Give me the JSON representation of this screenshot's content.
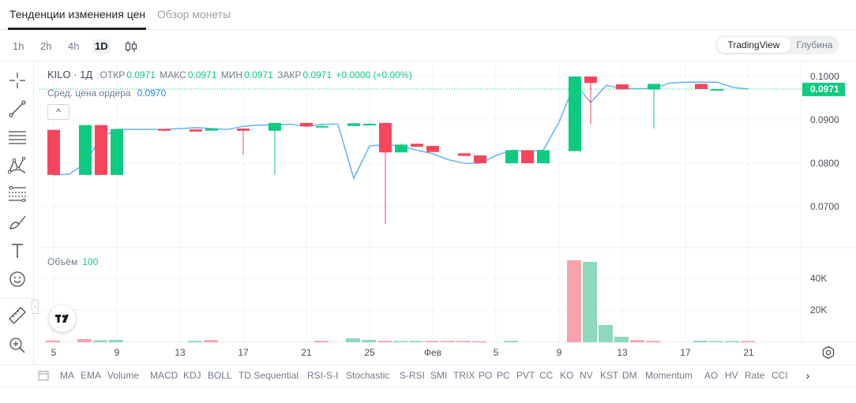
{
  "tabs": [
    {
      "label": "Тенденции изменения цен",
      "active": true
    },
    {
      "label": "Обзор монеты",
      "active": false
    }
  ],
  "timeframes": [
    {
      "label": "1h",
      "active": false
    },
    {
      "label": "2h",
      "active": false
    },
    {
      "label": "4h",
      "active": false
    },
    {
      "label": "1D",
      "active": true
    }
  ],
  "view_switch": {
    "active": "TradingView",
    "inactive": "Глубина"
  },
  "legend": {
    "symbol": "KILO · 1Д",
    "open_label": "ОТКР",
    "open": "0.0971",
    "high_label": "МАКС",
    "high": "0.0971",
    "low_label": "МИН",
    "low": "0.0971",
    "close_label": "ЗАКР",
    "close": "0.0971",
    "change": "+0.0000 (+0.00%)"
  },
  "avg_order": {
    "label": "Сред. цена ордера",
    "value": "0.0970"
  },
  "collapse_symbol": "^",
  "volume": {
    "label": "Объём",
    "value": "100"
  },
  "price_axis": {
    "ticks": [
      "0.1000",
      "0.0900",
      "0.0800",
      "0.0700"
    ],
    "current": "0.0971"
  },
  "volume_axis": {
    "ticks": [
      "40K",
      "20K"
    ]
  },
  "time_axis": {
    "ticks": [
      "5",
      "9",
      "13",
      "17",
      "21",
      "25",
      "Фев",
      "5",
      "9",
      "13",
      "17",
      "21"
    ]
  },
  "indicators": [
    "MA",
    "EMA",
    "Volume",
    "MACD",
    "KDJ",
    "BOLL",
    "TD Sequential",
    "RSI-S-I",
    "Stochastic",
    "S-RSI",
    "SMI",
    "TRIX",
    "PO",
    "PC",
    "PVT",
    "CC",
    "KO",
    "NV",
    "KST",
    "DM",
    "Momentum",
    "AO",
    "HV",
    "Rate",
    "CCI"
  ],
  "icons": {
    "crosshair": "crosshair-icon",
    "trendline": "trend-line-icon",
    "horizontal": "horizontal-lines-icon",
    "pattern": "pattern-icon",
    "fib": "fibonacci-icon",
    "brush": "brush-icon",
    "text": "text-icon",
    "emoji": "emoji-icon",
    "ruler": "ruler-icon",
    "zoom": "zoom-in-icon",
    "settings": "gear-icon",
    "calendar": "calendar-icon",
    "next": "chevron-right-icon"
  },
  "colors": {
    "up": "#0ecb81",
    "down": "#f6465d",
    "line": "#6cb6f0",
    "current": "#0ecb81"
  },
  "chart_data": {
    "type": "candlestick",
    "x_labels": [
      "5",
      "9",
      "13",
      "17",
      "21",
      "25",
      "Фев",
      "5",
      "9",
      "13",
      "17",
      "21"
    ],
    "ylim": [
      0.062,
      0.102
    ],
    "candles": [
      {
        "o": 0.0877,
        "h": 0.0877,
        "l": 0.0773,
        "c": 0.0773
      },
      {
        "o": 0.0773,
        "h": 0.0888,
        "l": 0.0773,
        "c": 0.0888
      },
      {
        "o": 0.0888,
        "h": 0.0888,
        "l": 0.0773,
        "c": 0.0773
      },
      {
        "o": 0.0773,
        "h": 0.0879,
        "l": 0.0773,
        "c": 0.0879
      },
      {
        "o": 0.0879,
        "h": 0.0879,
        "l": 0.0873,
        "c": 0.0875
      },
      {
        "o": 0.0878,
        "h": 0.0878,
        "l": 0.0873,
        "c": 0.0873
      },
      {
        "o": 0.0875,
        "h": 0.0882,
        "l": 0.0875,
        "c": 0.088
      },
      {
        "o": 0.088,
        "h": 0.088,
        "l": 0.082,
        "c": 0.0875
      },
      {
        "o": 0.0875,
        "h": 0.0893,
        "l": 0.0773,
        "c": 0.0893
      },
      {
        "o": 0.0893,
        "h": 0.0893,
        "l": 0.0883,
        "c": 0.0885
      },
      {
        "o": 0.0886,
        "h": 0.089,
        "l": 0.0885,
        "c": 0.0886
      },
      {
        "o": 0.0886,
        "h": 0.0892,
        "l": 0.0886,
        "c": 0.0892
      },
      {
        "o": 0.089,
        "h": 0.0893,
        "l": 0.0888,
        "c": 0.0891
      },
      {
        "o": 0.0893,
        "h": 0.0893,
        "l": 0.066,
        "c": 0.0825
      },
      {
        "o": 0.0825,
        "h": 0.0845,
        "l": 0.0825,
        "c": 0.0843
      },
      {
        "o": 0.0845,
        "h": 0.0845,
        "l": 0.0838,
        "c": 0.0838
      },
      {
        "o": 0.084,
        "h": 0.084,
        "l": 0.0826,
        "c": 0.0826
      },
      {
        "o": 0.0823,
        "h": 0.0823,
        "l": 0.0817,
        "c": 0.0817
      },
      {
        "o": 0.0818,
        "h": 0.0818,
        "l": 0.08,
        "c": 0.08
      },
      {
        "o": 0.08,
        "h": 0.083,
        "l": 0.08,
        "c": 0.083
      },
      {
        "o": 0.083,
        "h": 0.083,
        "l": 0.08,
        "c": 0.08
      },
      {
        "o": 0.08,
        "h": 0.083,
        "l": 0.08,
        "c": 0.083
      },
      {
        "o": 0.0828,
        "h": 0.1,
        "l": 0.0828,
        "c": 0.1
      },
      {
        "o": 0.1,
        "h": 0.1,
        "l": 0.089,
        "c": 0.0985
      },
      {
        "o": 0.0982,
        "h": 0.0982,
        "l": 0.097,
        "c": 0.097
      },
      {
        "o": 0.097,
        "h": 0.0983,
        "l": 0.088,
        "c": 0.0983
      },
      {
        "o": 0.0983,
        "h": 0.0983,
        "l": 0.0971,
        "c": 0.0971
      },
      {
        "o": 0.0971,
        "h": 0.0971,
        "l": 0.0971,
        "c": 0.0971
      }
    ],
    "candle_dates": [
      4,
      6,
      7,
      8,
      11,
      13,
      14,
      16,
      18,
      20,
      21,
      23,
      24,
      25,
      26,
      27,
      28,
      30,
      31,
      33,
      34,
      35,
      37,
      38,
      40,
      42,
      45,
      46
    ],
    "avg_line": [
      0.0773,
      0.0775,
      0.08,
      0.086,
      0.0878,
      0.0878,
      0.0878,
      0.0878,
      0.088,
      0.0882,
      0.088,
      0.0878,
      0.0885,
      0.0888,
      0.0888,
      0.089,
      0.0885,
      0.089,
      0.089,
      0.0765,
      0.084,
      0.0843,
      0.084,
      0.083,
      0.0822,
      0.0808,
      0.08,
      0.08,
      0.0818,
      0.083,
      0.0828,
      0.083,
      0.0895,
      0.0985,
      0.094,
      0.098,
      0.0972,
      0.0972,
      0.0972,
      0.0985,
      0.0987,
      0.0987,
      0.0987,
      0.0975,
      0.0971
    ],
    "volume": [
      {
        "d": 4,
        "v": 600,
        "up": false
      },
      {
        "d": 6,
        "v": 1500,
        "up": false
      },
      {
        "d": 7,
        "v": 800,
        "up": true
      },
      {
        "d": 8,
        "v": 1000,
        "up": true
      },
      {
        "d": 13,
        "v": 400,
        "up": true
      },
      {
        "d": 14,
        "v": 900,
        "up": false
      },
      {
        "d": 21,
        "v": 400,
        "up": false
      },
      {
        "d": 23,
        "v": 2000,
        "up": true
      },
      {
        "d": 24,
        "v": 1000,
        "up": true
      },
      {
        "d": 25,
        "v": 400,
        "up": false
      },
      {
        "d": 26,
        "v": 300,
        "up": true
      },
      {
        "d": 27,
        "v": 300,
        "up": true
      },
      {
        "d": 28,
        "v": 300,
        "up": false
      },
      {
        "d": 29,
        "v": 300,
        "up": false
      },
      {
        "d": 30,
        "v": 300,
        "up": false
      },
      {
        "d": 31,
        "v": 200,
        "up": false
      },
      {
        "d": 33,
        "v": 400,
        "up": true
      },
      {
        "d": 37,
        "v": 51500,
        "up": false
      },
      {
        "d": 38,
        "v": 50500,
        "up": true
      },
      {
        "d": 39,
        "v": 10500,
        "up": true
      },
      {
        "d": 40,
        "v": 3000,
        "up": true
      },
      {
        "d": 41,
        "v": 900,
        "up": false
      },
      {
        "d": 42,
        "v": 400,
        "up": false
      },
      {
        "d": 45,
        "v": 500,
        "up": true
      },
      {
        "d": 46,
        "v": 300,
        "up": true
      },
      {
        "d": 47,
        "v": 300,
        "up": true
      },
      {
        "d": 48,
        "v": 300,
        "up": false
      }
    ],
    "volume_ylim": [
      0,
      55000
    ]
  }
}
